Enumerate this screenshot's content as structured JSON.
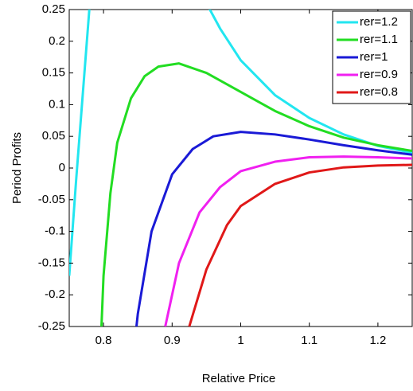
{
  "chart_data": {
    "type": "line",
    "xlabel": "Relative Price",
    "ylabel": "Period Profits",
    "xlim": [
      0.75,
      1.25
    ],
    "ylim": [
      -0.25,
      0.25
    ],
    "xticks": [
      0.8,
      0.9,
      1,
      1.1,
      1.2
    ],
    "yticks": [
      -0.25,
      -0.2,
      -0.15,
      -0.1,
      -0.05,
      0,
      0.05,
      0.1,
      0.15,
      0.2,
      0.25
    ],
    "legend": "upper right",
    "series": [
      {
        "name": "rer=1.2",
        "color": "#22e6f0",
        "x": [
          0.75,
          0.76,
          0.77,
          0.78,
          0.85,
          0.95,
          0.97,
          1.0,
          1.05,
          1.1,
          1.15,
          1.2,
          1.25
        ],
        "values": [
          -0.17,
          -0.02,
          0.12,
          0.26,
          null,
          0.26,
          0.22,
          0.17,
          0.115,
          0.079,
          0.053,
          0.035,
          0.024
        ]
      },
      {
        "name": "rer=1.1",
        "color": "#22dd22",
        "x": [
          0.797,
          0.8,
          0.81,
          0.82,
          0.84,
          0.86,
          0.88,
          0.91,
          0.95,
          1.0,
          1.05,
          1.1,
          1.15,
          1.2,
          1.25
        ],
        "values": [
          -0.25,
          -0.17,
          -0.04,
          0.04,
          0.11,
          0.145,
          0.16,
          0.165,
          0.15,
          0.12,
          0.09,
          0.066,
          0.048,
          0.036,
          0.027
        ]
      },
      {
        "name": "rer=1",
        "color": "#1a1ad6",
        "x": [
          0.848,
          0.85,
          0.87,
          0.9,
          0.93,
          0.96,
          1.0,
          1.05,
          1.1,
          1.15,
          1.2,
          1.25
        ],
        "values": [
          -0.25,
          -0.23,
          -0.1,
          -0.01,
          0.03,
          0.05,
          0.057,
          0.053,
          0.045,
          0.036,
          0.028,
          0.021
        ]
      },
      {
        "name": "rer=0.9",
        "color": "#f020f0",
        "x": [
          0.89,
          0.91,
          0.94,
          0.97,
          1.0,
          1.05,
          1.1,
          1.15,
          1.2,
          1.25
        ],
        "values": [
          -0.25,
          -0.15,
          -0.07,
          -0.03,
          -0.005,
          0.01,
          0.017,
          0.018,
          0.017,
          0.015
        ]
      },
      {
        "name": "rer=0.8",
        "color": "#e01818",
        "x": [
          0.925,
          0.95,
          0.98,
          1.0,
          1.05,
          1.1,
          1.15,
          1.2,
          1.25
        ],
        "values": [
          -0.25,
          -0.16,
          -0.09,
          -0.06,
          -0.025,
          -0.007,
          0.001,
          0.004,
          0.005
        ]
      }
    ]
  }
}
